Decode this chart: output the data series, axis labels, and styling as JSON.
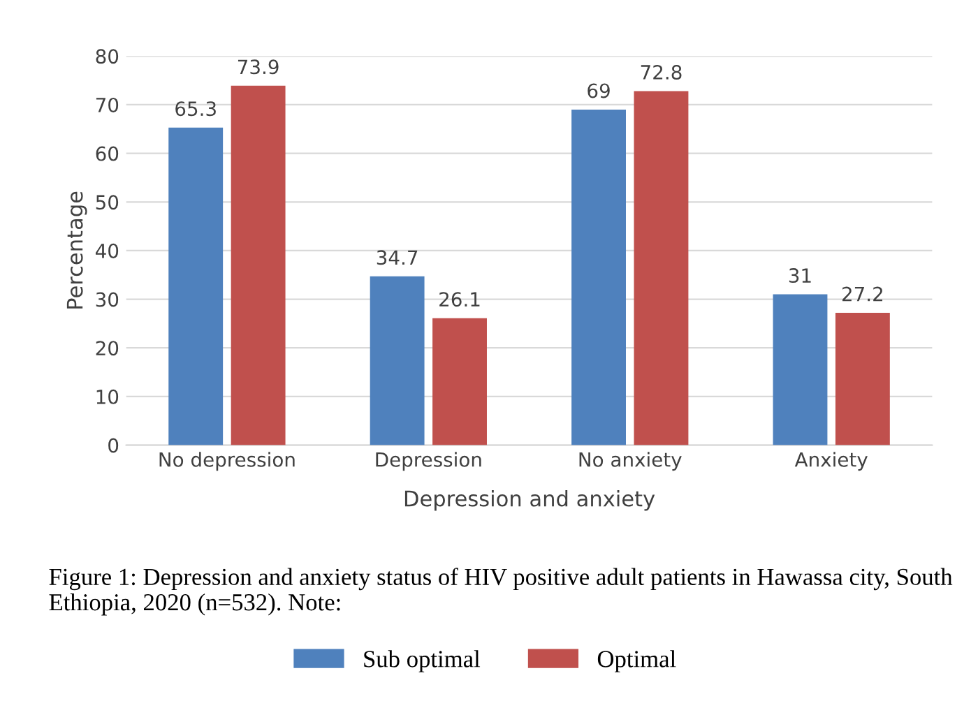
{
  "chart_data": {
    "type": "bar",
    "xlabel": "Depression and anxiety",
    "ylabel": "Percentage",
    "categories": [
      "No depression",
      "Depression",
      "No anxiety",
      "Anxiety"
    ],
    "series": [
      {
        "name": "Sub optimal",
        "color": "#4f81bd",
        "values": [
          65.3,
          34.7,
          69,
          31
        ]
      },
      {
        "name": "Optimal",
        "color": "#c0504d",
        "values": [
          73.9,
          26.1,
          72.8,
          27.2
        ]
      }
    ],
    "ylim": [
      0,
      80
    ],
    "yticks": [
      0,
      10,
      20,
      30,
      40,
      50,
      60,
      70,
      80
    ],
    "grid": "y",
    "data_labels": true,
    "legend": "bottom",
    "annotations": [
      "Figure 1: Depression and anxiety status of HIV positive adult patients in Hawassa city, South Ethiopia, 2020 (n=532). Note:"
    ]
  }
}
